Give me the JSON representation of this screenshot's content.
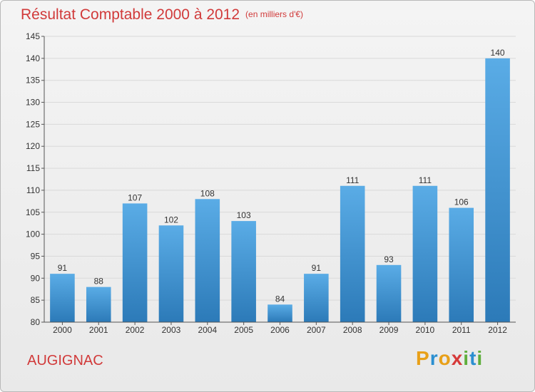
{
  "title": "Résultat Comptable 2000 à 2012",
  "subtitle": "(en milliers d'€)",
  "commune": "AUGIGNAC",
  "brand": "Proxiti",
  "colors": {
    "title": "#d13a3a",
    "bar_top": "#5aace6",
    "bar_bottom": "#2c7ab8",
    "axis": "#555555",
    "grid": "#d9d9d9"
  },
  "chart_data": {
    "type": "bar",
    "title": "Résultat Comptable 2000 à 2012",
    "subtitle": "(en milliers d'€)",
    "xlabel": "",
    "ylabel": "",
    "categories": [
      "2000",
      "2001",
      "2002",
      "2003",
      "2004",
      "2005",
      "2006",
      "2007",
      "2008",
      "2009",
      "2010",
      "2011",
      "2012"
    ],
    "values": [
      91,
      88,
      107,
      102,
      108,
      103,
      84,
      91,
      111,
      93,
      111,
      106,
      140
    ],
    "ylim": [
      80,
      145
    ],
    "yticks": [
      80,
      85,
      90,
      95,
      100,
      105,
      110,
      115,
      120,
      125,
      130,
      135,
      140,
      145
    ],
    "grid": true,
    "data_labels": true
  }
}
